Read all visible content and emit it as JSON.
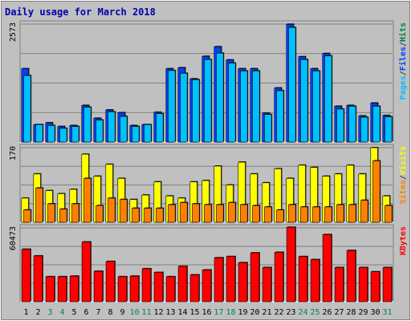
{
  "chart_data": {
    "type": "bar",
    "title": "Daily usage for March 2018",
    "categories": [
      "1",
      "2",
      "3",
      "4",
      "5",
      "6",
      "7",
      "8",
      "9",
      "10",
      "11",
      "12",
      "13",
      "14",
      "15",
      "16",
      "17",
      "18",
      "19",
      "20",
      "21",
      "22",
      "23",
      "24",
      "25",
      "26",
      "27",
      "28",
      "29",
      "30",
      "31"
    ],
    "weekend_days": [
      "3",
      "4",
      "10",
      "11",
      "17",
      "18",
      "24",
      "25",
      "31"
    ],
    "panels": [
      {
        "id": "top",
        "ymax_label": "2573",
        "ymax": 2573,
        "legend": [
          "Pages",
          "/",
          "Files",
          "/",
          "Hits"
        ],
        "legend_colors": [
          "#00c0ff",
          "#404040",
          "#0040ff",
          "#404040",
          "#008040"
        ],
        "series": [
          {
            "name": "Hits",
            "color": "#0040ff",
            "values": [
              1600,
              380,
              420,
              340,
              360,
              800,
              520,
              700,
              640,
              360,
              380,
              650,
              1600,
              1620,
              1380,
              1870,
              2080,
              1790,
              1600,
              1600,
              630,
              1180,
              2570,
              1860,
              1600,
              1930,
              780,
              800,
              570,
              850,
              580
            ]
          },
          {
            "name": "Files",
            "color": "#00c0ff",
            "values": [
              1450,
              380,
              360,
              300,
              340,
              760,
              480,
              660,
              560,
              340,
              380,
              620,
              1560,
              1500,
              1360,
              1800,
              1940,
              1720,
              1550,
              1550,
              600,
              1120,
              2500,
              1800,
              1550,
              1880,
              720,
              780,
              540,
              780,
              550
            ]
          }
        ]
      },
      {
        "id": "middle",
        "ymax_label": "170",
        "ymax": 170,
        "legend": [
          "Sites",
          "/",
          "Visits"
        ],
        "legend_colors": [
          "#ff8000",
          "#404040",
          "#ffff00"
        ],
        "series": [
          {
            "name": "Visits",
            "color": "#ffff00",
            "values": [
              55,
              110,
              72,
              65,
              75,
              155,
              105,
              132,
              100,
              52,
              62,
              92,
              60,
              55,
              92,
              95,
              128,
              85,
              137,
              110,
              90,
              122,
              100,
              130,
              125,
              105,
              110,
              130,
              110,
              170,
              60
            ]
          },
          {
            "name": "Sites",
            "color": "#ff8000",
            "values": [
              28,
              78,
              42,
              30,
              42,
              100,
              38,
              55,
              52,
              32,
              32,
              32,
              40,
              45,
              42,
              40,
              40,
              45,
              40,
              38,
              35,
              28,
              40,
              35,
              35,
              35,
              40,
              40,
              50,
              140,
              38
            ]
          }
        ]
      },
      {
        "id": "bottom",
        "ymax_label": "60473",
        "ymax": 60473,
        "legend": [
          "KBytes"
        ],
        "legend_colors": [
          "#ff0000"
        ],
        "series": [
          {
            "name": "KBytes",
            "color": "#ff0000",
            "values": [
              43000,
              37500,
              20500,
              20500,
              21000,
              49000,
              25000,
              33000,
              20500,
              21000,
              27000,
              24000,
              20500,
              29000,
              22000,
              26000,
              36000,
              37000,
              32000,
              40000,
              28000,
              40500,
              61000,
              37000,
              34500,
              55000,
              28000,
              42000,
              28000,
              24500,
              28000
            ]
          }
        ]
      }
    ]
  }
}
